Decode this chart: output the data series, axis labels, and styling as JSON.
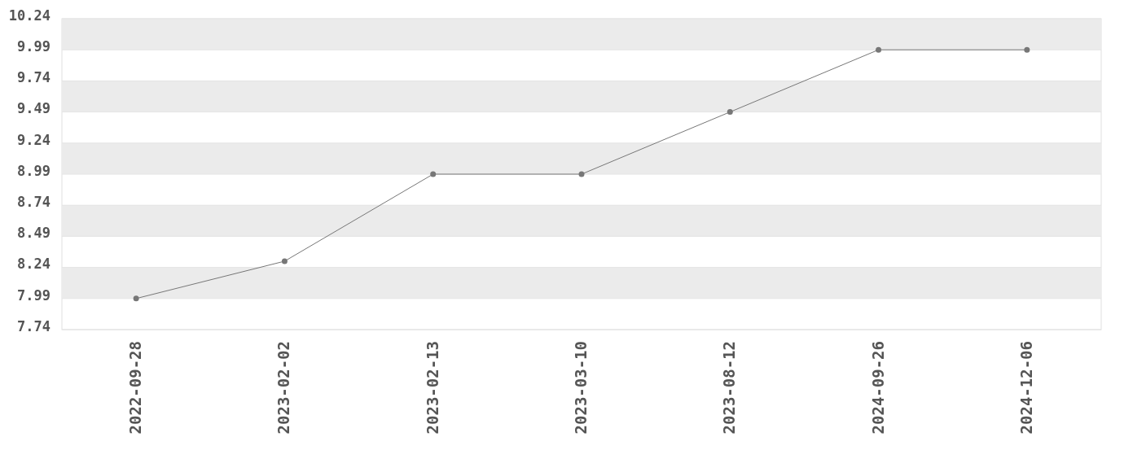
{
  "chart_data": {
    "type": "line",
    "categories": [
      "2022-09-28",
      "2023-02-02",
      "2023-02-13",
      "2023-03-10",
      "2023-08-12",
      "2024-09-26",
      "2024-12-06"
    ],
    "series": [
      {
        "color": "#777777",
        "values": [
          7.99,
          8.29,
          8.99,
          8.99,
          9.49,
          9.99,
          9.99
        ]
      }
    ],
    "ylim": [
      7.74,
      10.24
    ],
    "yticks": [
      7.74,
      7.99,
      8.24,
      8.49,
      8.74,
      8.99,
      9.24,
      9.49,
      9.74,
      9.99,
      10.24
    ],
    "grid": "y",
    "marker": "circle",
    "line_style": "solid"
  }
}
